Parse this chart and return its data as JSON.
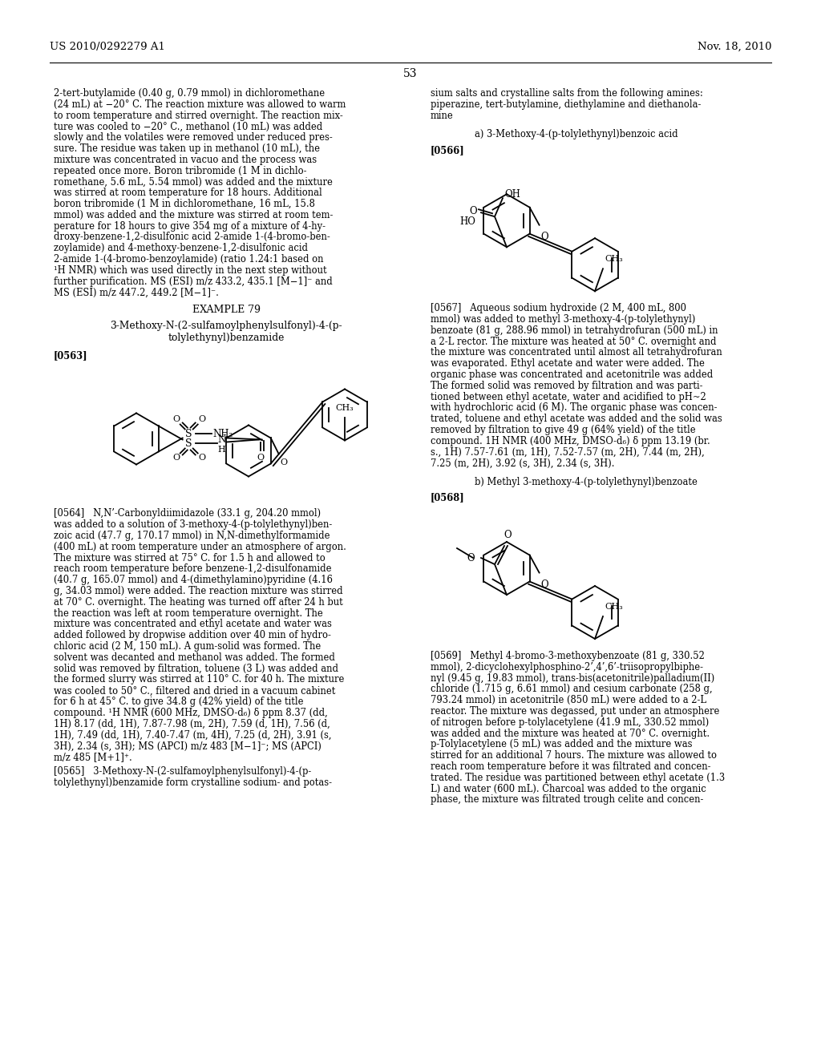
{
  "page_number": "53",
  "header_left": "US 2010/0292279 A1",
  "header_right": "Nov. 18, 2010",
  "background_color": "#ffffff",
  "text_color": "#000000",
  "left_col_lines": [
    "2-tert-butylamide (0.40 g, 0.79 mmol) in dichloromethane",
    "(24 mL) at −20° C. The reaction mixture was allowed to warm",
    "to room temperature and stirred overnight. The reaction mix-",
    "ture was cooled to −20° C., methanol (10 mL) was added",
    "slowly and the volatiles were removed under reduced pres-",
    "sure. The residue was taken up in methanol (10 mL), the",
    "mixture was concentrated in vacuo and the process was",
    "repeated once more. Boron tribromide (1 M in dichlo-",
    "romethane, 5.6 mL, 5.54 mmol) was added and the mixture",
    "was stirred at room temperature for 18 hours. Additional",
    "boron tribromide (1 M in dichloromethane, 16 mL, 15.8",
    "mmol) was added and the mixture was stirred at room tem-",
    "perature for 18 hours to give 354 mg of a mixture of 4-hy-",
    "droxy-benzene-1,2-disulfonic acid 2-amide 1-(4-bromo-ben-",
    "zoylamide) and 4-methoxy-benzene-1,2-disulfonic acid",
    "2-amide 1-(4-bromo-benzoylamide) (ratio 1.24:1 based on",
    "¹H NMR) which was used directly in the next step without",
    "further purification. MS (ESI) m/z 433.2, 435.1 [M−1]⁻ and",
    "MS (ESI) m/z 447.2, 449.2 [M−1]⁻."
  ],
  "example_title": "EXAMPLE 79",
  "example_subtitle1": "3-Methoxy-N-(2-sulfamoylphenylsulfonyl)-4-(p-",
  "example_subtitle2": "tolylethynyl)benzamide",
  "label_0563": "[0563]",
  "lines_0564": [
    "[0564]   N,N’-Carbonyldiimidazole (33.1 g, 204.20 mmol)",
    "was added to a solution of 3-methoxy-4-(p-tolylethynyl)ben-",
    "zoic acid (47.7 g, 170.17 mmol) in N,N-dimethylformamide",
    "(400 mL) at room temperature under an atmosphere of argon.",
    "The mixture was stirred at 75° C. for 1.5 h and allowed to",
    "reach room temperature before benzene-1,2-disulfonamide",
    "(40.7 g, 165.07 mmol) and 4-(dimethylamino)pyridine (4.16",
    "g, 34.03 mmol) were added. The reaction mixture was stirred",
    "at 70° C. overnight. The heating was turned off after 24 h but",
    "the reaction was left at room temperature overnight. The",
    "mixture was concentrated and ethyl acetate and water was",
    "added followed by dropwise addition over 40 min of hydro-",
    "chloric acid (2 M, 150 mL). A gum-solid was formed. The",
    "solvent was decanted and methanol was added. The formed",
    "solid was removed by filtration, toluene (3 L) was added and",
    "the formed slurry was stirred at 110° C. for 40 h. The mixture",
    "was cooled to 50° C., filtered and dried in a vacuum cabinet",
    "for 6 h at 45° C. to give 34.8 g (42% yield) of the title",
    "compound. ¹H NMR (600 MHz, DMSO-d₆) δ ppm 8.37 (dd,",
    "1H) 8.17 (dd, 1H), 7.87-7.98 (m, 2H), 7.59 (d, 1H), 7.56 (d,",
    "1H), 7.49 (dd, 1H), 7.40-7.47 (m, 4H), 7.25 (d, 2H), 3.91 (s,",
    "3H), 2.34 (s, 3H); MS (APCI) m/z 483 [M−1]⁻; MS (APCI)",
    "m/z 485 [M+1]⁺."
  ],
  "lines_0565": [
    "[0565]   3-Methoxy-N-(2-sulfamoylphenylsulfonyl)-4-(p-",
    "tolylethynyl)benzamide form crystalline sodium- and potas-"
  ],
  "right_col_top": [
    "sium salts and crystalline salts from the following amines:",
    "piperazine, tert-butylamine, diethylamine and diethanola-",
    "mine"
  ],
  "right_a_label": "a) 3-Methoxy-4-(p-tolylethynyl)benzoic acid",
  "label_0566": "[0566]",
  "lines_0567": [
    "[0567]   Aqueous sodium hydroxide (2 M, 400 mL, 800",
    "mmol) was added to methyl 3-methoxy-4-(p-tolylethynyl)",
    "benzoate (81 g, 288.96 mmol) in tetrahydrofuran (500 mL) in",
    "a 2-L rector. The mixture was heated at 50° C. overnight and",
    "the mixture was concentrated until almost all tetrahydrofuran",
    "was evaporated. Ethyl acetate and water were added. The",
    "organic phase was concentrated and acetonitrile was added",
    "The formed solid was removed by filtration and was parti-",
    "tioned between ethyl acetate, water and acidified to pH~2",
    "with hydrochloric acid (6 M). The organic phase was concen-",
    "trated, toluene and ethyl acetate was added and the solid was",
    "removed by filtration to give 49 g (64% yield) of the title",
    "compound. 1H NMR (400 MHz, DMSO-d₆) δ ppm 13.19 (br.",
    "s., 1H) 7.57-7.61 (m, 1H), 7.52-7.57 (m, 2H), 7.44 (m, 2H),",
    "7.25 (m, 2H), 3.92 (s, 3H), 2.34 (s, 3H)."
  ],
  "right_b_label": "b) Methyl 3-methoxy-4-(p-tolylethynyl)benzoate",
  "label_0568": "[0568]",
  "lines_0569": [
    "[0569]   Methyl 4-bromo-3-methoxybenzoate (81 g, 330.52",
    "mmol), 2-dicyclohexylphosphino-2’,4’,6’-triisopropylbiphe-",
    "nyl (9.45 g, 19.83 mmol), trans-bis(acetonitrile)palladium(II)",
    "chloride (1.715 g, 6.61 mmol) and cesium carbonate (258 g,",
    "793.24 mmol) in acetonitrile (850 mL) were added to a 2-L",
    "reactor. The mixture was degassed, put under an atmosphere",
    "of nitrogen before p-tolylacetylene (41.9 mL, 330.52 mmol)",
    "was added and the mixture was heated at 70° C. overnight.",
    "p-Tolylacetylene (5 mL) was added and the mixture was",
    "stirred for an additional 7 hours. The mixture was allowed to",
    "reach room temperature before it was filtrated and concen-",
    "trated. The residue was partitioned between ethyl acetate (1.3",
    "L) and water (600 mL). Charcoal was added to the organic",
    "phase, the mixture was filtrated trough celite and concen-"
  ]
}
